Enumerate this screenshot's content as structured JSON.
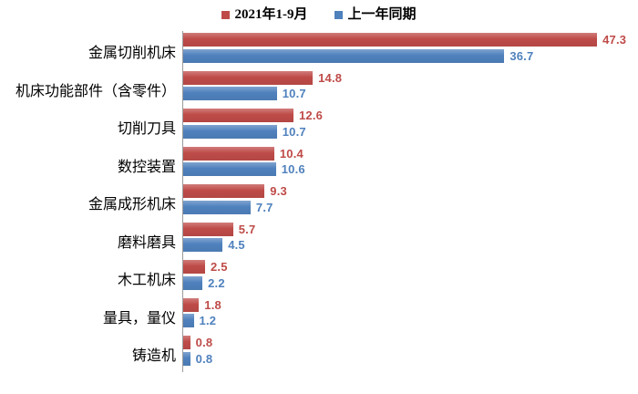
{
  "chart_data": {
    "type": "bar",
    "orientation": "horizontal",
    "title": "",
    "categories": [
      "金属切削机床",
      "机床功能部件（含零件）",
      "切削刀具",
      "数控装置",
      "金属成形机床",
      "磨料磨具",
      "木工机床",
      "量具，量仪",
      "铸造机"
    ],
    "series": [
      {
        "name": "2021年1-9月",
        "color": "#be4b48",
        "values": [
          47.3,
          14.8,
          12.6,
          10.4,
          9.3,
          5.7,
          2.5,
          1.8,
          0.8
        ]
      },
      {
        "name": "上一年同期",
        "color": "#4f81bd",
        "values": [
          36.7,
          10.7,
          10.7,
          10.6,
          7.7,
          4.5,
          2.2,
          1.2,
          0.8
        ]
      }
    ],
    "xlim": [
      0,
      50
    ],
    "data_labels": true,
    "legend_position": "top",
    "grid": false,
    "axis_line_color": "#9b9b9b"
  }
}
